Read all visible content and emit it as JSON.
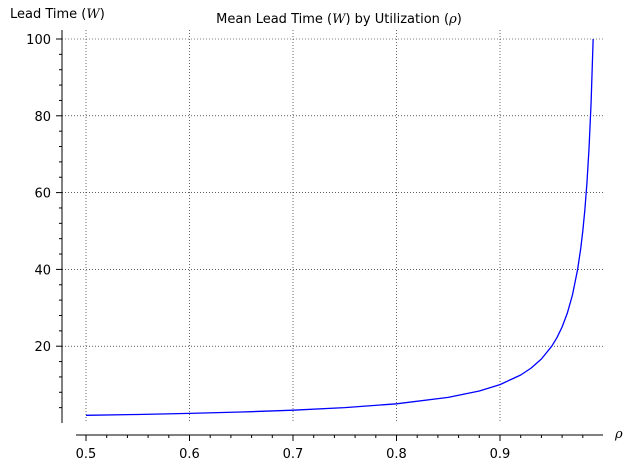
{
  "chart_data": {
    "type": "line",
    "title": {
      "prefix": "Mean Lead Time (",
      "symbol1": "W",
      "middle": ") by Utilization (",
      "symbol2": "ρ",
      "suffix": ")"
    },
    "ylabel": {
      "prefix": "Lead Time (",
      "symbol": "W",
      "suffix": ")"
    },
    "xlabel": {
      "symbol": "ρ"
    },
    "xlim": [
      0.5,
      0.99
    ],
    "ylim": [
      0,
      102
    ],
    "x_ticks": [
      0.5,
      0.6,
      0.7,
      0.8,
      0.9
    ],
    "x_tick_labels": [
      "0.5",
      "0.6",
      "0.7",
      "0.8",
      "0.9"
    ],
    "y_ticks": [
      20,
      40,
      60,
      80,
      100
    ],
    "y_tick_labels": [
      "20",
      "40",
      "60",
      "80",
      "100"
    ],
    "grid": true,
    "series": [
      {
        "color": "#0000ff",
        "x": [
          0.5,
          0.55,
          0.6,
          0.65,
          0.7,
          0.75,
          0.8,
          0.85,
          0.88,
          0.9,
          0.92,
          0.93,
          0.94,
          0.95,
          0.955,
          0.96,
          0.965,
          0.97,
          0.975,
          0.978,
          0.98,
          0.982,
          0.984,
          0.986,
          0.988,
          0.99
        ],
        "y": [
          2,
          2.22,
          2.5,
          2.86,
          3.33,
          4,
          5,
          6.67,
          8.33,
          10,
          12.5,
          14.29,
          16.67,
          20,
          22.22,
          25,
          28.57,
          33.33,
          40,
          45.45,
          50,
          55.56,
          62.5,
          71.43,
          83.33,
          100
        ]
      }
    ]
  }
}
